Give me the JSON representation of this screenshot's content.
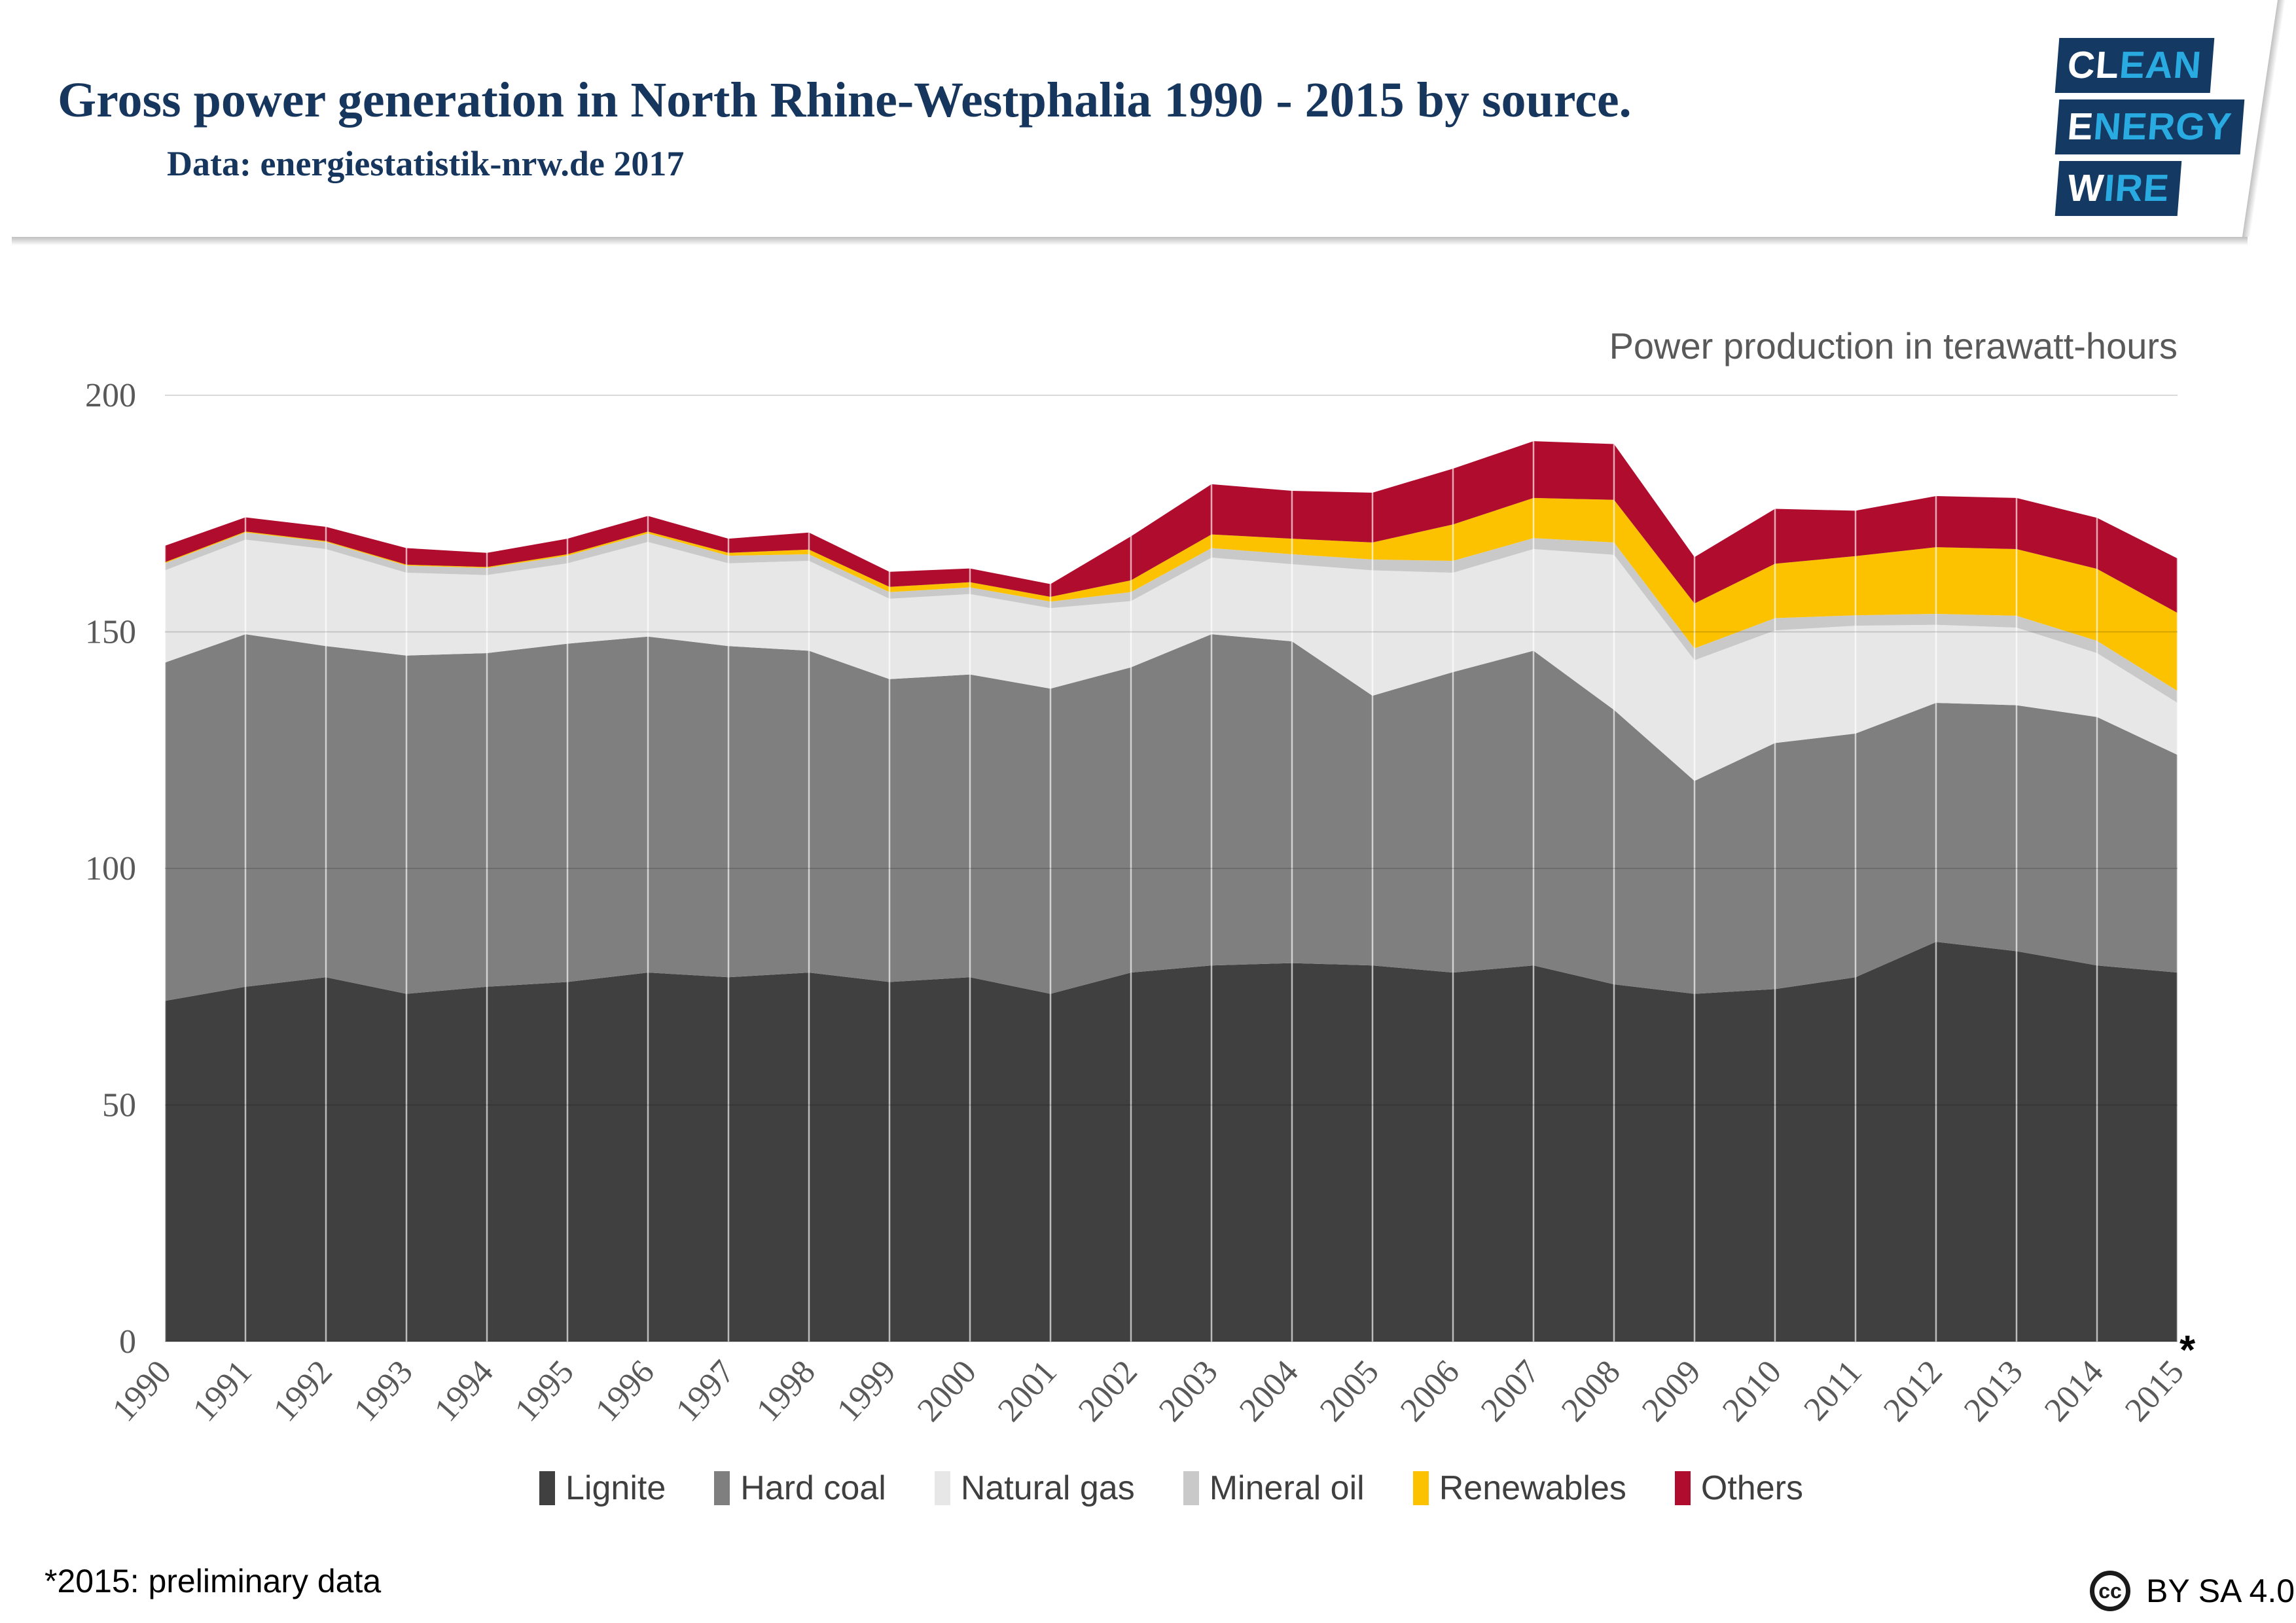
{
  "header": {
    "title": "Gross power generation in North Rhine-Westphalia 1990 - 2015 by source.",
    "subtitle": "Data: energiestatistik-nrw.de 2017",
    "logo": {
      "rows": [
        {
          "prefix": "CL",
          "rest": "EAN"
        },
        {
          "prefix": "E",
          "rest": "NERGY"
        },
        {
          "prefix": "W",
          "rest": "IRE"
        }
      ]
    }
  },
  "chart": {
    "axis_title": "Power production in terawatt-hours",
    "footnote": "*2015: preliminary data",
    "license": {
      "cc": "cc",
      "label": "BY SA 4.0"
    },
    "colors": {
      "grid_over_white": "#d9d9d9",
      "tick_text": "#595959",
      "title_navy": "#17365d",
      "logo_navy": "#143a63",
      "logo_blue": "#29abe2"
    }
  },
  "chart_data": {
    "type": "area",
    "stacked": true,
    "title": "Power production in terawatt-hours",
    "x": [
      1990,
      1991,
      1992,
      1993,
      1994,
      1995,
      1996,
      1997,
      1998,
      1999,
      2000,
      2001,
      2002,
      2003,
      2004,
      2005,
      2006,
      2007,
      2008,
      2009,
      2010,
      2011,
      2012,
      2013,
      2014,
      2015
    ],
    "x_last_label_suffix": "*",
    "ylim": [
      0,
      200
    ],
    "yticks": [
      0,
      50,
      100,
      150,
      200
    ],
    "grid": true,
    "legend_position": "bottom",
    "series": [
      {
        "name": "Lignite",
        "color": "#404040",
        "values": [
          72,
          75,
          77,
          73.5,
          75,
          76,
          78,
          77,
          78,
          76,
          77,
          73.5,
          78,
          79.5,
          80,
          79.5,
          78,
          79.5,
          75.5,
          73.5,
          74.5,
          77,
          84.5,
          82.5,
          79.5,
          78
        ]
      },
      {
        "name": "Hard coal",
        "color": "#7f7f7f",
        "values": [
          71.5,
          74.5,
          70,
          71.5,
          70.5,
          71.5,
          71,
          70,
          68,
          64,
          64,
          64.5,
          64.5,
          70,
          68,
          57,
          63.5,
          66.5,
          58,
          45,
          52,
          51.5,
          50.5,
          52,
          52.5,
          46
        ]
      },
      {
        "name": "Natural gas",
        "color": "#e7e7e7",
        "values": [
          19.5,
          20,
          20.5,
          17.5,
          16.5,
          17,
          20,
          17.5,
          19,
          17,
          17,
          17,
          14,
          16.2,
          16.3,
          26.5,
          21,
          21.5,
          32.8,
          25.5,
          23.8,
          22.8,
          16.5,
          16.4,
          13.5,
          11
        ]
      },
      {
        "name": "Mineral oil",
        "color": "#c9c9c9",
        "values": [
          1.5,
          1.5,
          1.5,
          1.5,
          1.5,
          1.6,
          1.8,
          1.6,
          1.4,
          1.4,
          1.4,
          1.4,
          1.9,
          2,
          2.1,
          2.3,
          2.5,
          2.3,
          2.6,
          2.5,
          2.6,
          2.2,
          2.3,
          2.5,
          2.6,
          2.5
        ]
      },
      {
        "name": "Renewables",
        "color": "#fcc200",
        "values": [
          0.2,
          0.2,
          0.2,
          0.2,
          0.2,
          0.3,
          0.4,
          0.6,
          1.0,
          1.1,
          1.1,
          1.0,
          2.5,
          2.9,
          3.3,
          3.6,
          7.7,
          8.5,
          9.0,
          9.5,
          11.5,
          12.5,
          14.1,
          14.1,
          15.2,
          16.5
        ]
      },
      {
        "name": "Others",
        "color": "#b00d2e",
        "values": [
          3.5,
          3,
          3,
          3.5,
          3,
          3.3,
          3.3,
          3,
          3.6,
          3.2,
          2.9,
          2.7,
          9.3,
          10.6,
          10.1,
          10.5,
          11.8,
          12,
          11.8,
          9.8,
          11.6,
          9.6,
          10.8,
          10.8,
          10.8,
          11.5
        ]
      }
    ]
  }
}
